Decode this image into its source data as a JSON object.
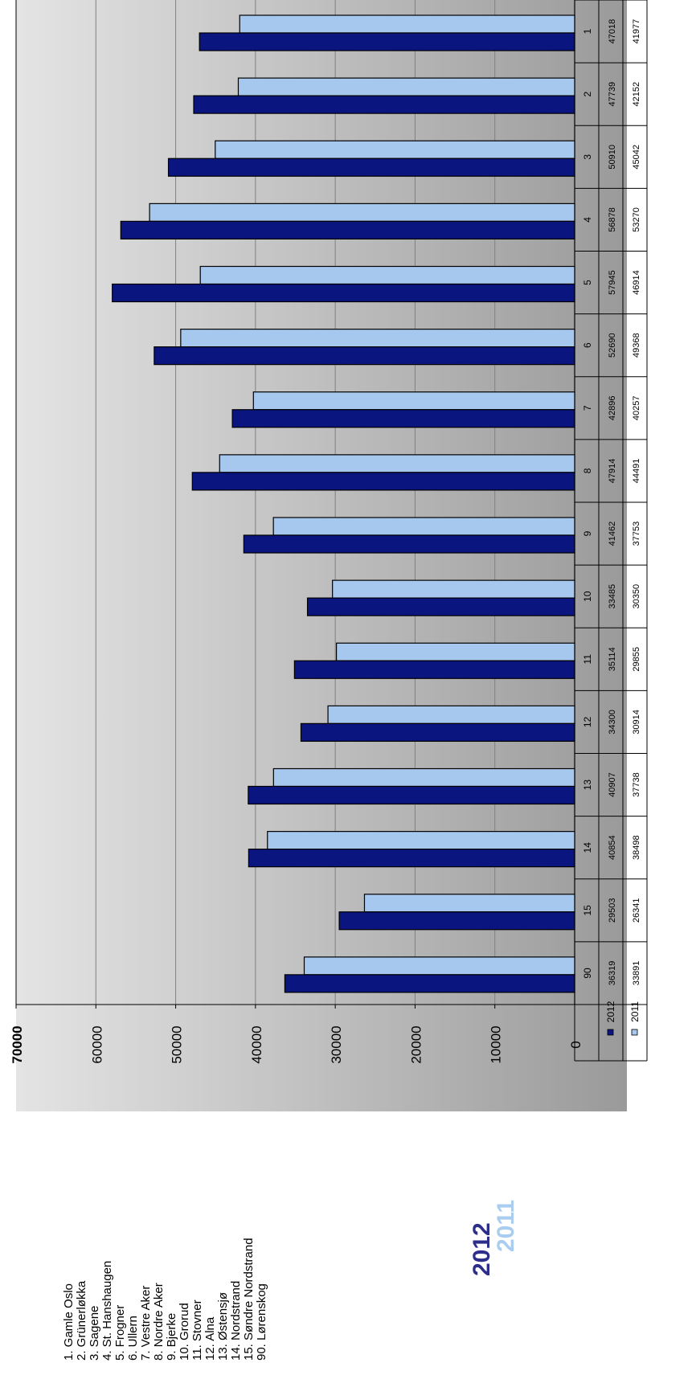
{
  "page": {
    "district_list": [
      "1. Gamle Oslo",
      "2. Grünerløkka",
      "3. Sagene",
      "4. St. Hanshaugen",
      "5. Frogner",
      "6. Ullern",
      "7. Vestre Aker",
      "8. Nordre Aker",
      "9. Bjerke",
      "10. Grorud",
      "11. Stovner",
      "12. Alna",
      "13. Østensjø",
      "14. Nordstrand",
      "15. Søndre Nordstrand",
      "90. Lørenskog"
    ],
    "year_2012_label": "2012",
    "year_2011_label": "2011"
  },
  "chart_data": {
    "type": "bar",
    "orientation": "horizontal",
    "categories": [
      "1",
      "2",
      "3",
      "4",
      "5",
      "6",
      "7",
      "8",
      "9",
      "10",
      "11",
      "12",
      "13",
      "14",
      "15",
      "90"
    ],
    "series": [
      {
        "name": "2012",
        "color": "#0a1580",
        "values": [
          47018,
          47739,
          50910,
          56878,
          57945,
          52690,
          42896,
          47914,
          41462,
          33485,
          35114,
          34300,
          40907,
          40854,
          29503,
          36319
        ]
      },
      {
        "name": "2011",
        "color": "#a6c8ef",
        "values": [
          41977,
          42152,
          45042,
          53270,
          46914,
          49368,
          40257,
          44491,
          37753,
          30350,
          29855,
          30914,
          37738,
          38498,
          26341,
          33891
        ]
      }
    ],
    "axis_ticks": [
      "0",
      "10000",
      "20000",
      "30000",
      "40000",
      "50000",
      "60000",
      "70000"
    ],
    "xlim": [
      0,
      70000
    ],
    "grid": true,
    "legend": "data-table"
  }
}
